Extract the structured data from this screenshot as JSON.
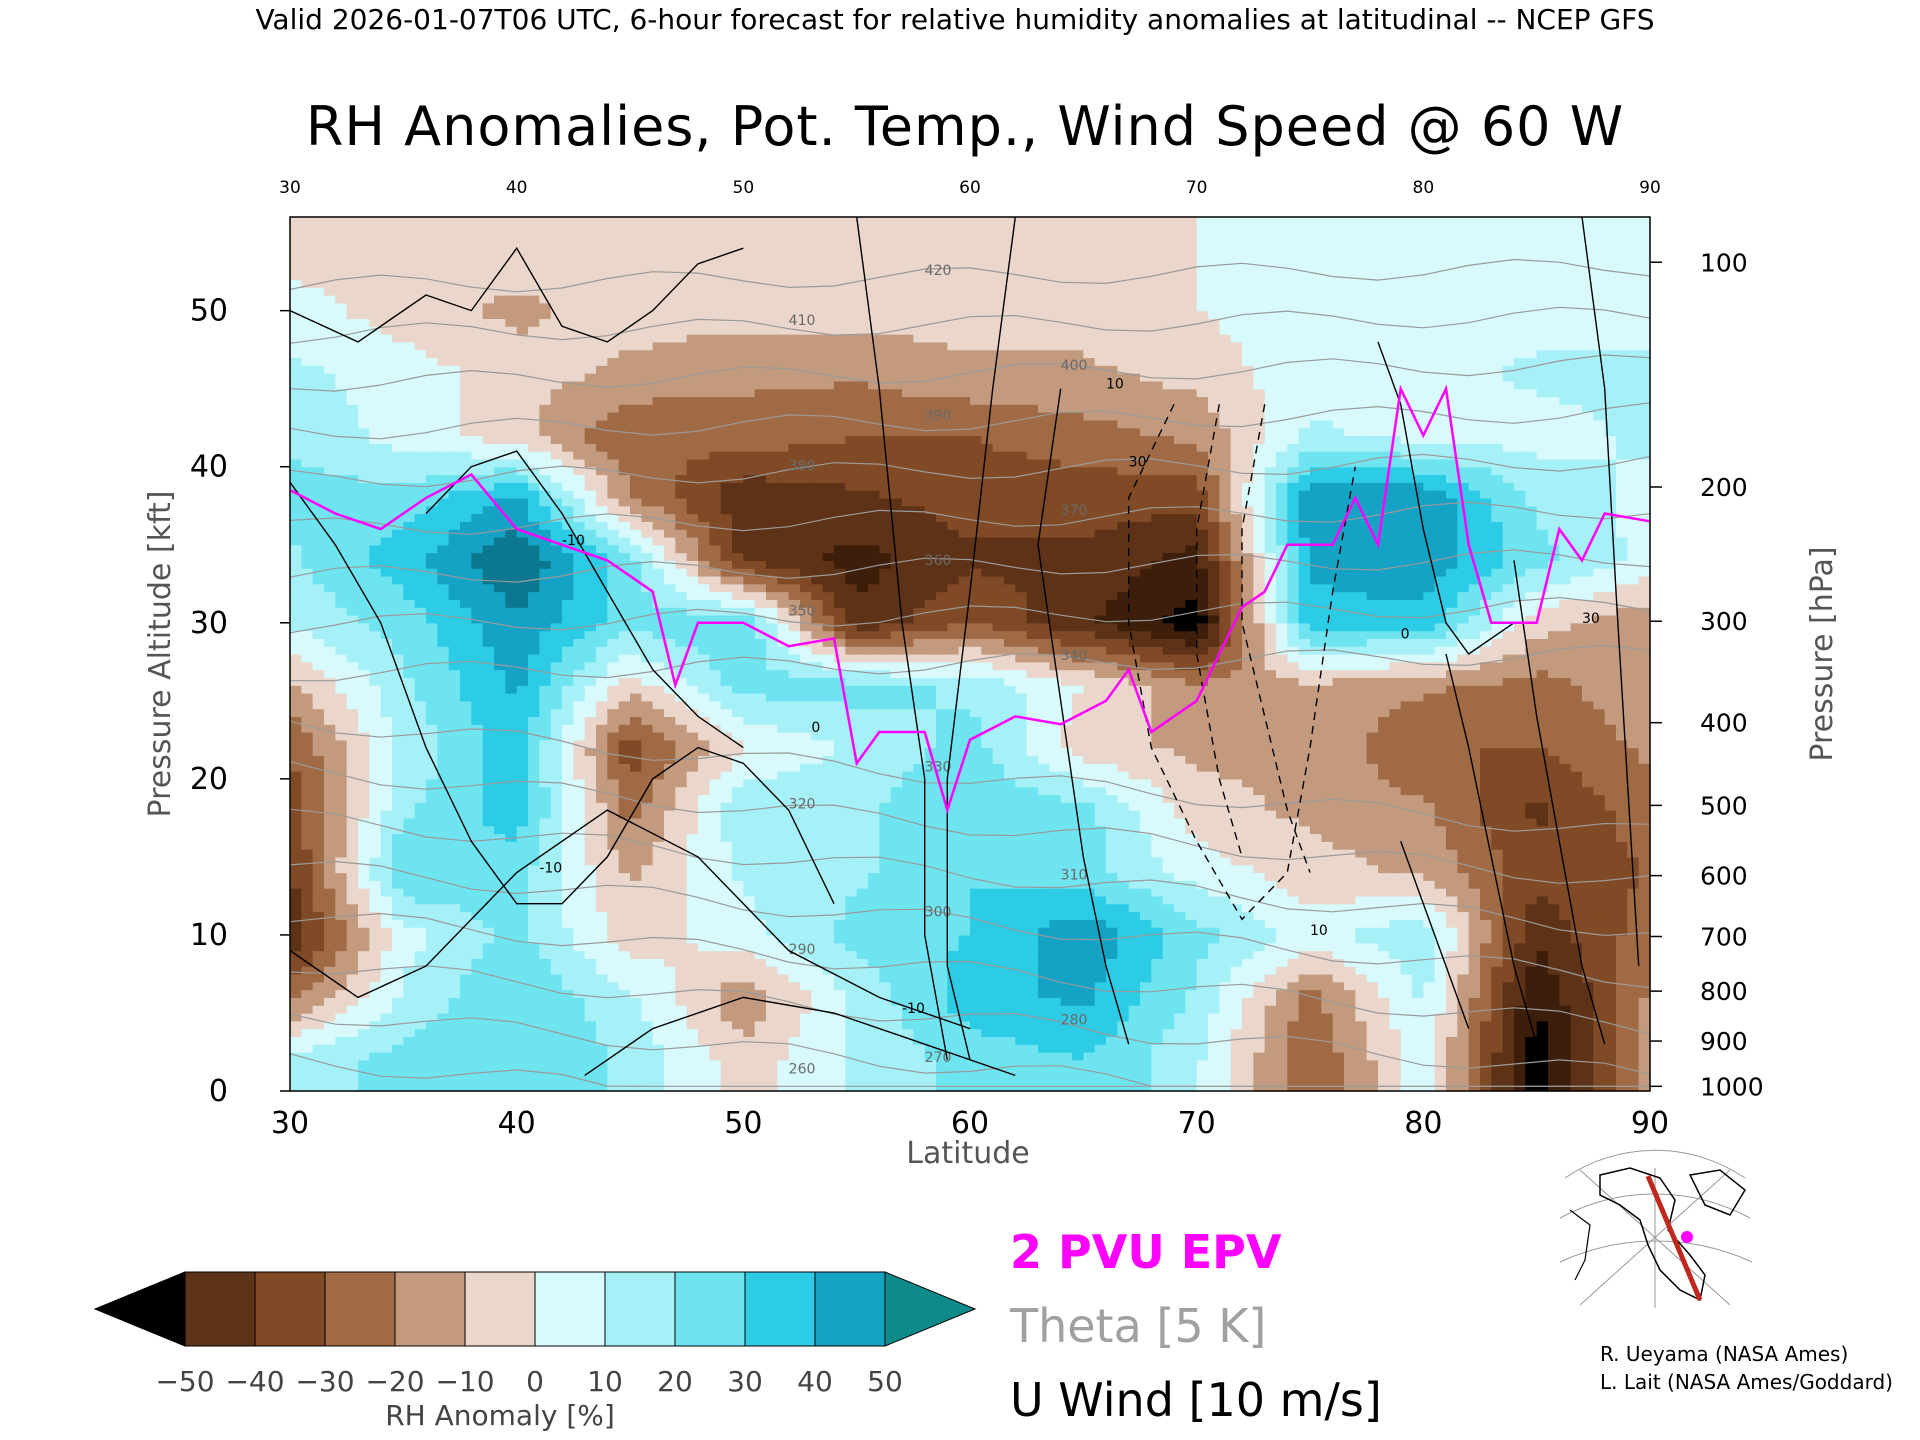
{
  "header": "Valid 2026-01-07T06 UTC, 6-hour forecast for relative humidity anomalies at latitudinal -- NCEP GFS",
  "chart_data": {
    "type": "heatmap",
    "title": "RH Anomalies, Pot. Temp., Wind Speed @ 60 W",
    "xlabel": "Latitude",
    "ylabel_left": "Pressure Altitude [kft]",
    "ylabel_right": "Pressure [hPa]",
    "xlim": [
      30,
      90
    ],
    "ylim": [
      0,
      56
    ],
    "x_ticks": [
      "30",
      "40",
      "50",
      "60",
      "70",
      "80",
      "90"
    ],
    "top_x_ticks": [
      "30",
      "40",
      "50",
      "60",
      "70",
      "80",
      "90"
    ],
    "y_ticks": [
      "0",
      "10",
      "20",
      "30",
      "40",
      "50"
    ],
    "pressure_ticks": [
      {
        "label": "100",
        "kft": 53.1
      },
      {
        "label": "200",
        "kft": 38.7
      },
      {
        "label": "300",
        "kft": 30.1
      },
      {
        "label": "400",
        "kft": 23.6
      },
      {
        "label": "500",
        "kft": 18.3
      },
      {
        "label": "600",
        "kft": 13.8
      },
      {
        "label": "700",
        "kft": 9.9
      },
      {
        "label": "800",
        "kft": 6.4
      },
      {
        "label": "900",
        "kft": 3.2
      },
      {
        "label": "1000",
        "kft": 0.3
      }
    ],
    "colorbar": {
      "label": "RH Anomaly [%]",
      "ticks": [
        "−50",
        "−40",
        "−30",
        "−20",
        "−10",
        "0",
        "10",
        "20",
        "30",
        "40",
        "50"
      ],
      "colors": [
        "#3c1e0a",
        "#5e3216",
        "#7f4a25",
        "#a06a45",
        "#c39a7e",
        "#ead6cb",
        "#d8fafc",
        "#a6f1f7",
        "#6ee4f1",
        "#2ccbe6",
        "#14a3c4",
        "#0b7890"
      ],
      "under_color": "#000000",
      "over_color": "#0f8a8a"
    },
    "rh_anomaly_grid": {
      "lat": [
        30,
        35,
        40,
        45,
        50,
        55,
        60,
        65,
        70,
        75,
        80,
        85,
        90
      ],
      "kft": [
        2,
        6,
        10,
        14,
        18,
        22,
        26,
        30,
        34,
        38,
        42,
        46,
        50,
        54
      ],
      "values": [
        [
          12,
          20,
          25,
          15,
          -5,
          10,
          20,
          25,
          10,
          -25,
          5,
          -55,
          -10
        ],
        [
          -20,
          10,
          25,
          10,
          -15,
          10,
          30,
          35,
          15,
          -20,
          10,
          -50,
          -15
        ],
        [
          -40,
          5,
          20,
          -5,
          5,
          20,
          25,
          40,
          20,
          5,
          15,
          -40,
          -20
        ],
        [
          -35,
          25,
          20,
          -10,
          10,
          15,
          25,
          20,
          5,
          -5,
          -10,
          -30,
          -25
        ],
        [
          -30,
          15,
          30,
          -20,
          15,
          15,
          25,
          20,
          -5,
          -10,
          -15,
          -35,
          -20
        ],
        [
          -25,
          10,
          30,
          -30,
          0,
          10,
          20,
          -5,
          -10,
          -10,
          -25,
          -25,
          -15
        ],
        [
          -10,
          15,
          35,
          -5,
          20,
          20,
          15,
          0,
          -15,
          -10,
          -15,
          -20,
          -10
        ],
        [
          10,
          20,
          40,
          20,
          25,
          -40,
          -25,
          -40,
          -55,
          30,
          30,
          -5,
          -15
        ],
        [
          15,
          30,
          50,
          20,
          -35,
          -45,
          -35,
          -35,
          -45,
          35,
          40,
          20,
          5
        ],
        [
          20,
          20,
          35,
          -15,
          -40,
          -35,
          -30,
          -30,
          -30,
          40,
          40,
          15,
          5
        ],
        [
          15,
          5,
          -5,
          -25,
          -20,
          -25,
          -25,
          -20,
          -15,
          10,
          5,
          5,
          10
        ],
        [
          10,
          5,
          -5,
          -10,
          -15,
          -15,
          -10,
          -10,
          -5,
          5,
          5,
          10,
          10
        ],
        [
          5,
          -5,
          -10,
          -5,
          -5,
          -5,
          -5,
          -5,
          0,
          5,
          5,
          5,
          5
        ],
        [
          -5,
          -5,
          -5,
          -5,
          -5,
          -5,
          -5,
          -5,
          0,
          5,
          5,
          5,
          5
        ]
      ]
    },
    "theta_contours_K": [
      "260",
      "270",
      "280",
      "290",
      "300",
      "310",
      "320",
      "330",
      "340",
      "350",
      "360",
      "370",
      "380",
      "390",
      "400",
      "410",
      "420"
    ],
    "wind_contours_ms": [
      "-10",
      "0",
      "10",
      "30"
    ],
    "pvu_line": [
      {
        "lat": 30,
        "kft": 38.5
      },
      {
        "lat": 32,
        "kft": 37
      },
      {
        "lat": 34,
        "kft": 36
      },
      {
        "lat": 36,
        "kft": 38
      },
      {
        "lat": 38,
        "kft": 39.5
      },
      {
        "lat": 40,
        "kft": 36
      },
      {
        "lat": 42,
        "kft": 35
      },
      {
        "lat": 44,
        "kft": 34
      },
      {
        "lat": 46,
        "kft": 32
      },
      {
        "lat": 47,
        "kft": 26
      },
      {
        "lat": 48,
        "kft": 30
      },
      {
        "lat": 50,
        "kft": 30
      },
      {
        "lat": 52,
        "kft": 28.5
      },
      {
        "lat": 54,
        "kft": 29
      },
      {
        "lat": 55,
        "kft": 21
      },
      {
        "lat": 56,
        "kft": 23
      },
      {
        "lat": 58,
        "kft": 23
      },
      {
        "lat": 59,
        "kft": 18
      },
      {
        "lat": 60,
        "kft": 22.5
      },
      {
        "lat": 62,
        "kft": 24
      },
      {
        "lat": 64,
        "kft": 23.5
      },
      {
        "lat": 66,
        "kft": 25
      },
      {
        "lat": 67,
        "kft": 27
      },
      {
        "lat": 68,
        "kft": 23
      },
      {
        "lat": 70,
        "kft": 25
      },
      {
        "lat": 72,
        "kft": 31
      },
      {
        "lat": 73,
        "kft": 32
      },
      {
        "lat": 74,
        "kft": 35
      },
      {
        "lat": 76,
        "kft": 35
      },
      {
        "lat": 77,
        "kft": 38
      },
      {
        "lat": 78,
        "kft": 35
      },
      {
        "lat": 79,
        "kft": 45
      },
      {
        "lat": 80,
        "kft": 42
      },
      {
        "lat": 81,
        "kft": 45
      },
      {
        "lat": 82,
        "kft": 35
      },
      {
        "lat": 83,
        "kft": 30
      },
      {
        "lat": 85,
        "kft": 30
      },
      {
        "lat": 86,
        "kft": 36
      },
      {
        "lat": 87,
        "kft": 34
      },
      {
        "lat": 88,
        "kft": 37
      },
      {
        "lat": 90,
        "kft": 36.5
      }
    ],
    "legend": [
      "2 PVU EPV",
      "Theta [5 K]",
      "U Wind [10 m/s]"
    ],
    "legend_colors": [
      "#ff00ff",
      "#a0a0a0",
      "#000000"
    ]
  },
  "credits": [
    "R. Ueyama (NASA Ames)",
    "L. Lait (NASA Ames/Goddard)"
  ]
}
